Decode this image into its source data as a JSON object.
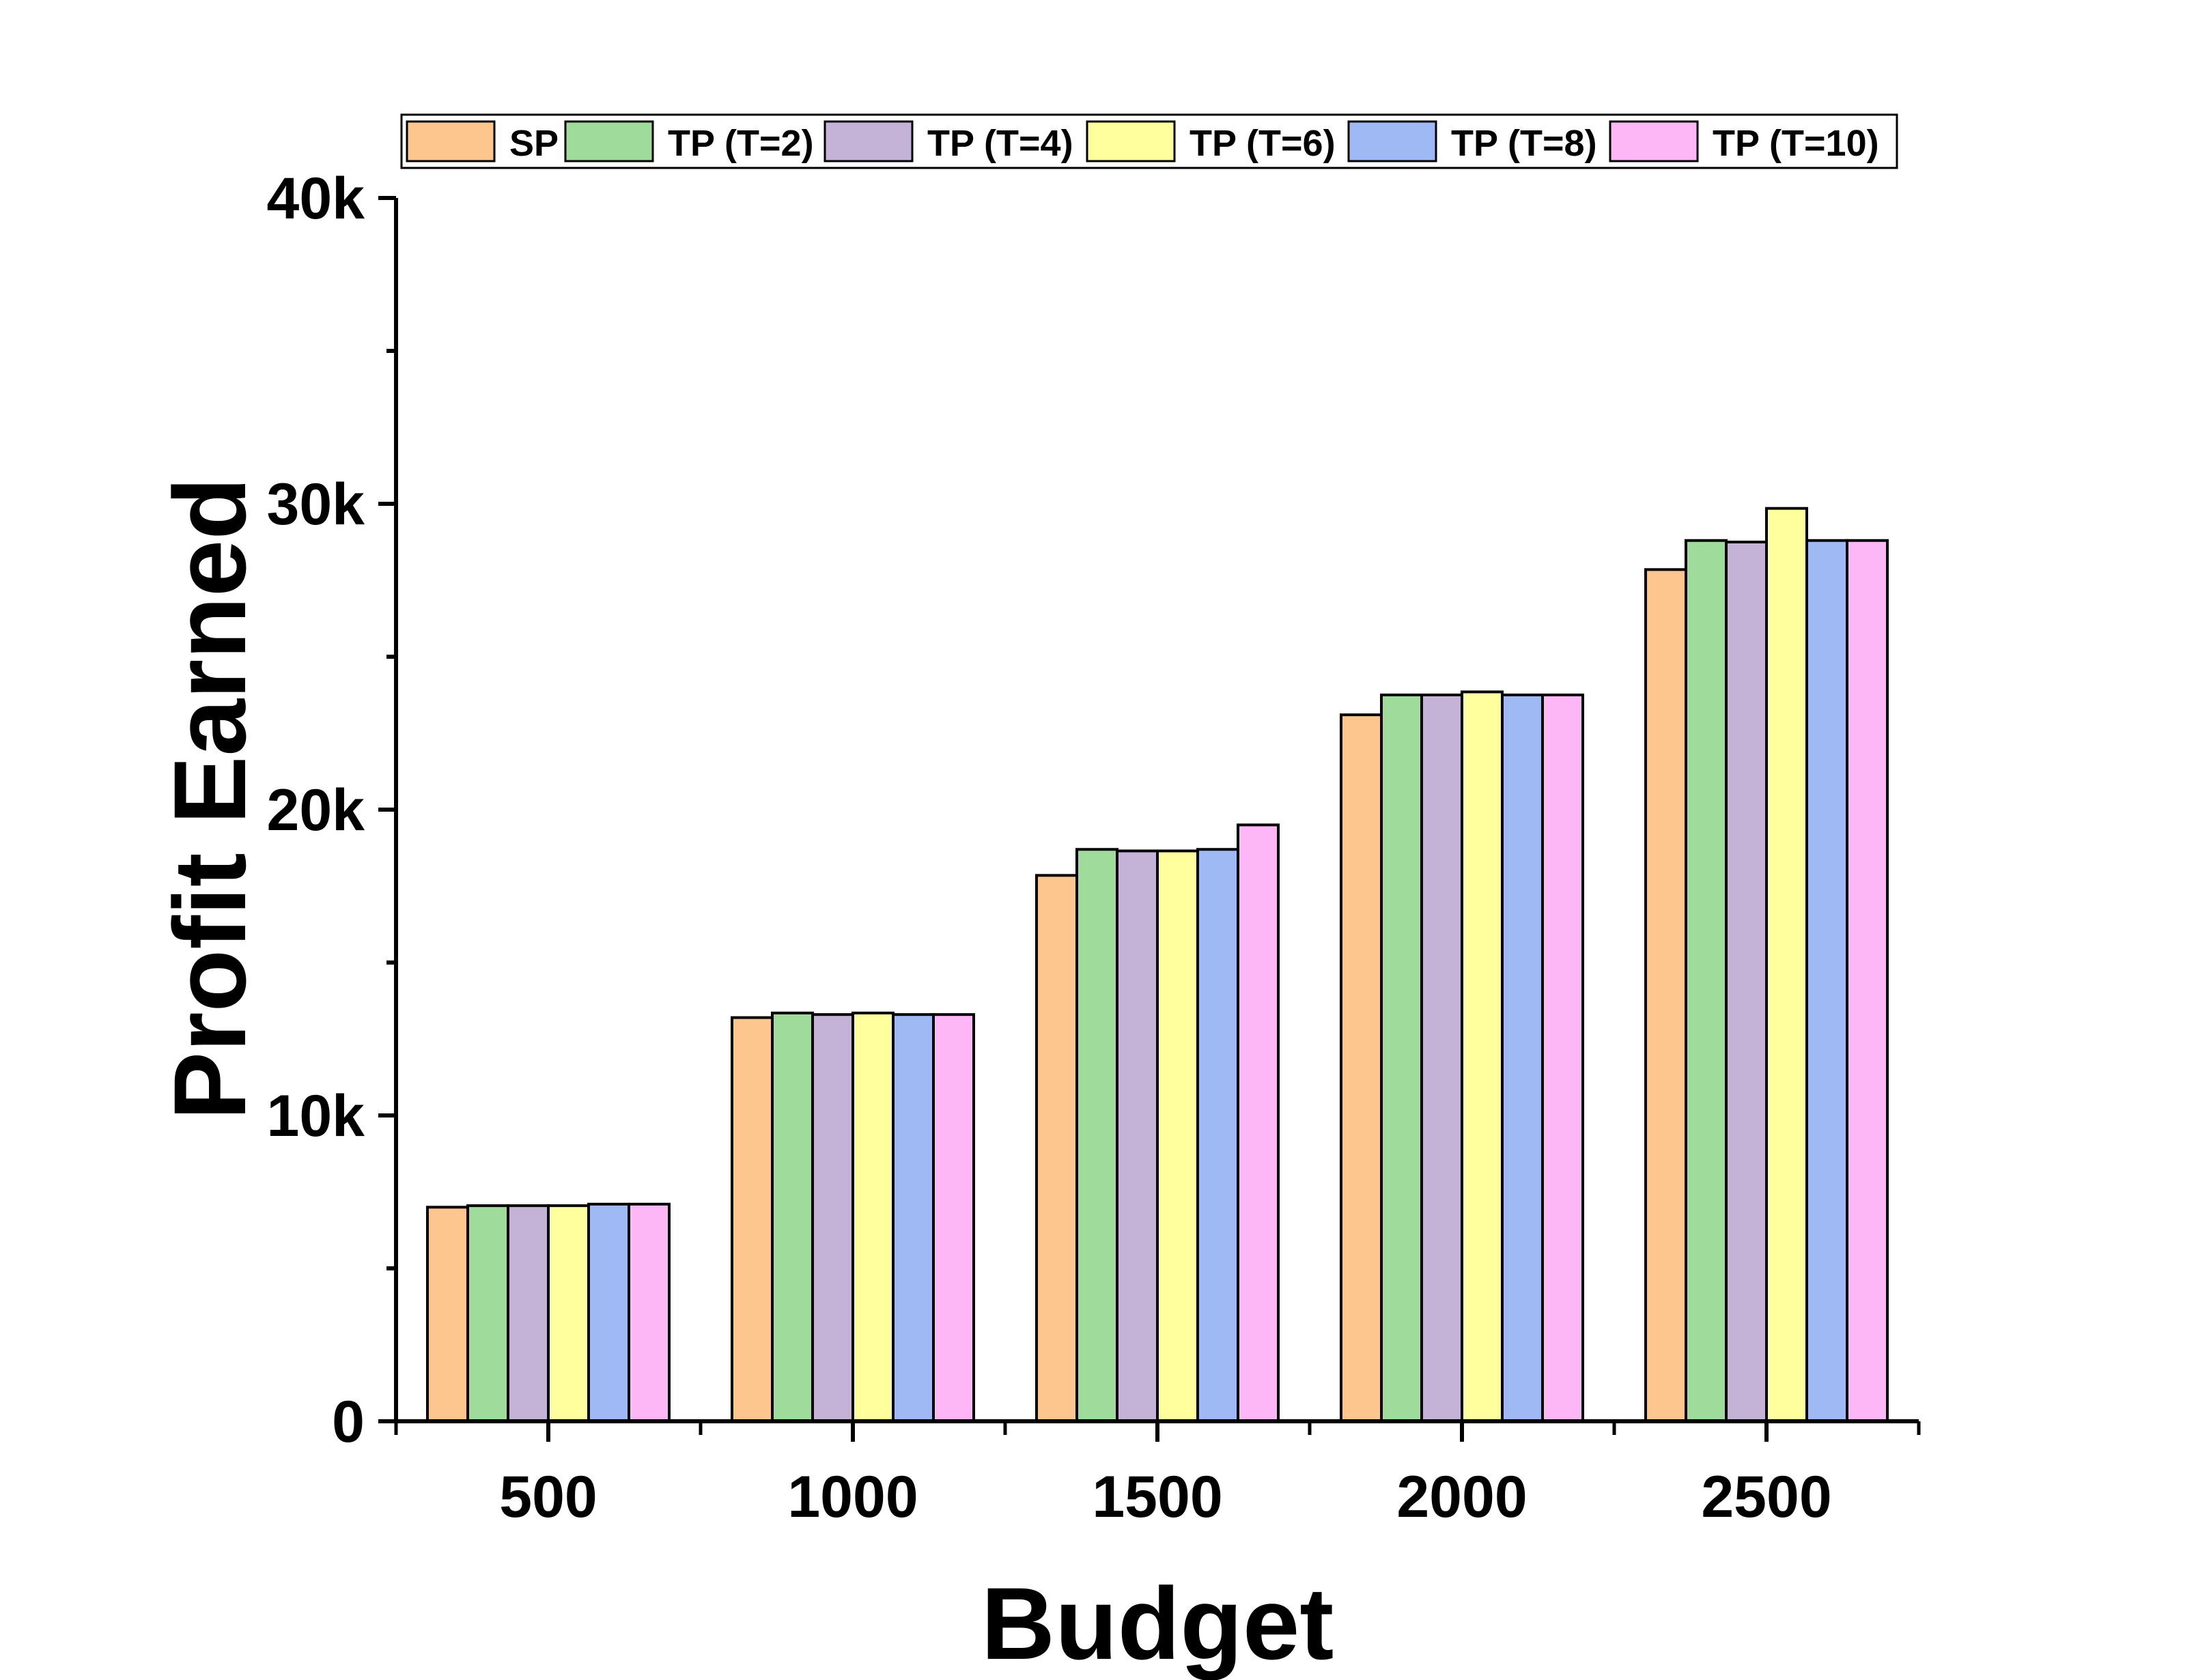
{
  "chart_data": {
    "type": "bar",
    "title": "",
    "xlabel": "Budget",
    "ylabel": "Profit Earned",
    "categories": [
      "500",
      "1000",
      "1500",
      "2000",
      "2500"
    ],
    "ylim": [
      0,
      40000
    ],
    "yticks": [
      {
        "value": 0,
        "label": "0"
      },
      {
        "value": 10000,
        "label": "10k"
      },
      {
        "value": 20000,
        "label": "20k"
      },
      {
        "value": 30000,
        "label": "30k"
      },
      {
        "value": 40000,
        "label": "40k"
      }
    ],
    "grid": false,
    "legend_position": "top",
    "series": [
      {
        "name": "SP",
        "color": "#FDC68F",
        "values": [
          7000,
          13200,
          17850,
          23100,
          27850
        ]
      },
      {
        "name": "TP (T=2)",
        "color": "#9FDB9B",
        "values": [
          7050,
          13350,
          18700,
          23750,
          28800
        ]
      },
      {
        "name": "TP (T=4)",
        "color": "#C4B2D7",
        "values": [
          7050,
          13300,
          18650,
          23750,
          28750
        ]
      },
      {
        "name": "TP (T=6)",
        "color": "#FFFF9E",
        "values": [
          7050,
          13350,
          18650,
          23850,
          29850
        ]
      },
      {
        "name": "TP (T=8)",
        "color": "#9EB9F3",
        "values": [
          7100,
          13300,
          18700,
          23750,
          28800
        ]
      },
      {
        "name": "TP (T=10)",
        "color": "#FDB7F6",
        "values": [
          7100,
          13300,
          19500,
          23750,
          28800
        ]
      }
    ]
  }
}
